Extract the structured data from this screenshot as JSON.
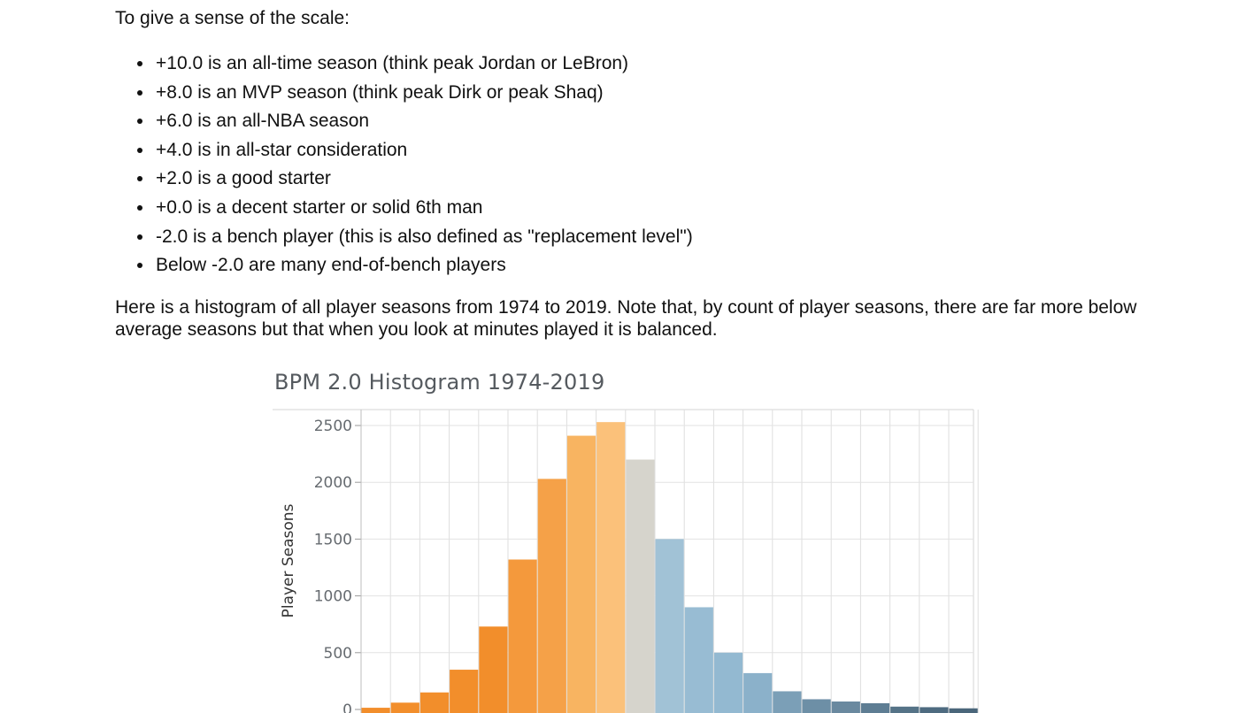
{
  "intro": "To give a sense of the scale:",
  "bullets": [
    "+10.0 is an all-time season (think peak Jordan or LeBron)",
    "+8.0 is an MVP season (think peak Dirk or peak Shaq)",
    "+6.0 is an all-NBA season",
    "+4.0 is in all-star consideration",
    "+2.0 is a good starter",
    "+0.0 is a decent starter or solid 6th man",
    "-2.0 is a bench player (this is also defined as \"replacement level\")",
    "Below -2.0 are many end-of-bench players"
  ],
  "paragraph": "Here is a histogram of all player seasons from 1974 to 2019. Note that, by count of player seasons, there are far more below average seasons but that when you look at minutes played it is balanced.",
  "chart_data": {
    "type": "bar",
    "title": "BPM 2.0 Histogram 1974-2019",
    "ylabel": "Player Seasons",
    "xlabel": "",
    "ylim": [
      0,
      2650
    ],
    "yticks": [
      0,
      500,
      1000,
      1500,
      2000,
      2500
    ],
    "grid": true,
    "values": [
      15,
      60,
      150,
      350,
      730,
      1320,
      2030,
      2410,
      2530,
      2200,
      1500,
      900,
      500,
      320,
      160,
      90,
      70,
      55,
      25,
      20,
      10
    ],
    "colors": [
      "#f28e2b",
      "#f28e2b",
      "#f28e2b",
      "#f28e2b",
      "#f28e2b",
      "#f4993c",
      "#f5a148",
      "#f8b461",
      "#fbc17a",
      "#d6d4cc",
      "#a1c2d6",
      "#98bcd3",
      "#93b9d1",
      "#8bb1ca",
      "#7b9fb7",
      "#6d8fa6",
      "#6a899f",
      "#5e7d93",
      "#557387",
      "#4e6b80",
      "#4a667a"
    ]
  }
}
